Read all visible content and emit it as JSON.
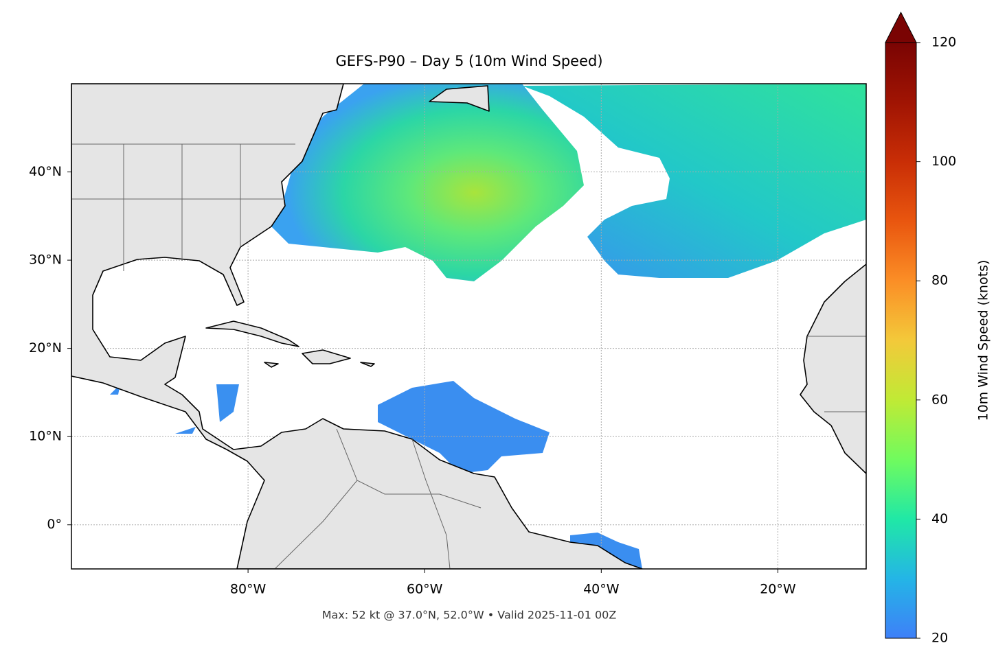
{
  "chart_data": {
    "type": "map",
    "title": "GEFS-P90 – Day 5 (10m Wind Speed)",
    "footnote": "Max: 52 kt @ 37.0°N, 52.0°W • Valid 2025-11-01 00Z",
    "xlim": [
      -100,
      -10
    ],
    "ylim": [
      -5,
      50
    ],
    "xticks": [
      {
        "value": -80,
        "label": "80°W"
      },
      {
        "value": -60,
        "label": "60°W"
      },
      {
        "value": -40,
        "label": "40°W"
      },
      {
        "value": -20,
        "label": "20°W"
      }
    ],
    "yticks": [
      {
        "value": 0,
        "label": "0°"
      },
      {
        "value": 10,
        "label": "10°N"
      },
      {
        "value": 20,
        "label": "20°N"
      },
      {
        "value": 30,
        "label": "30°N"
      },
      {
        "value": 40,
        "label": "40°N"
      }
    ],
    "grid": true,
    "colorbar": {
      "label": "10m Wind Speed (knots)",
      "lim": [
        20,
        120
      ],
      "ticks": [
        20,
        40,
        60,
        80,
        100,
        120
      ]
    }
  }
}
